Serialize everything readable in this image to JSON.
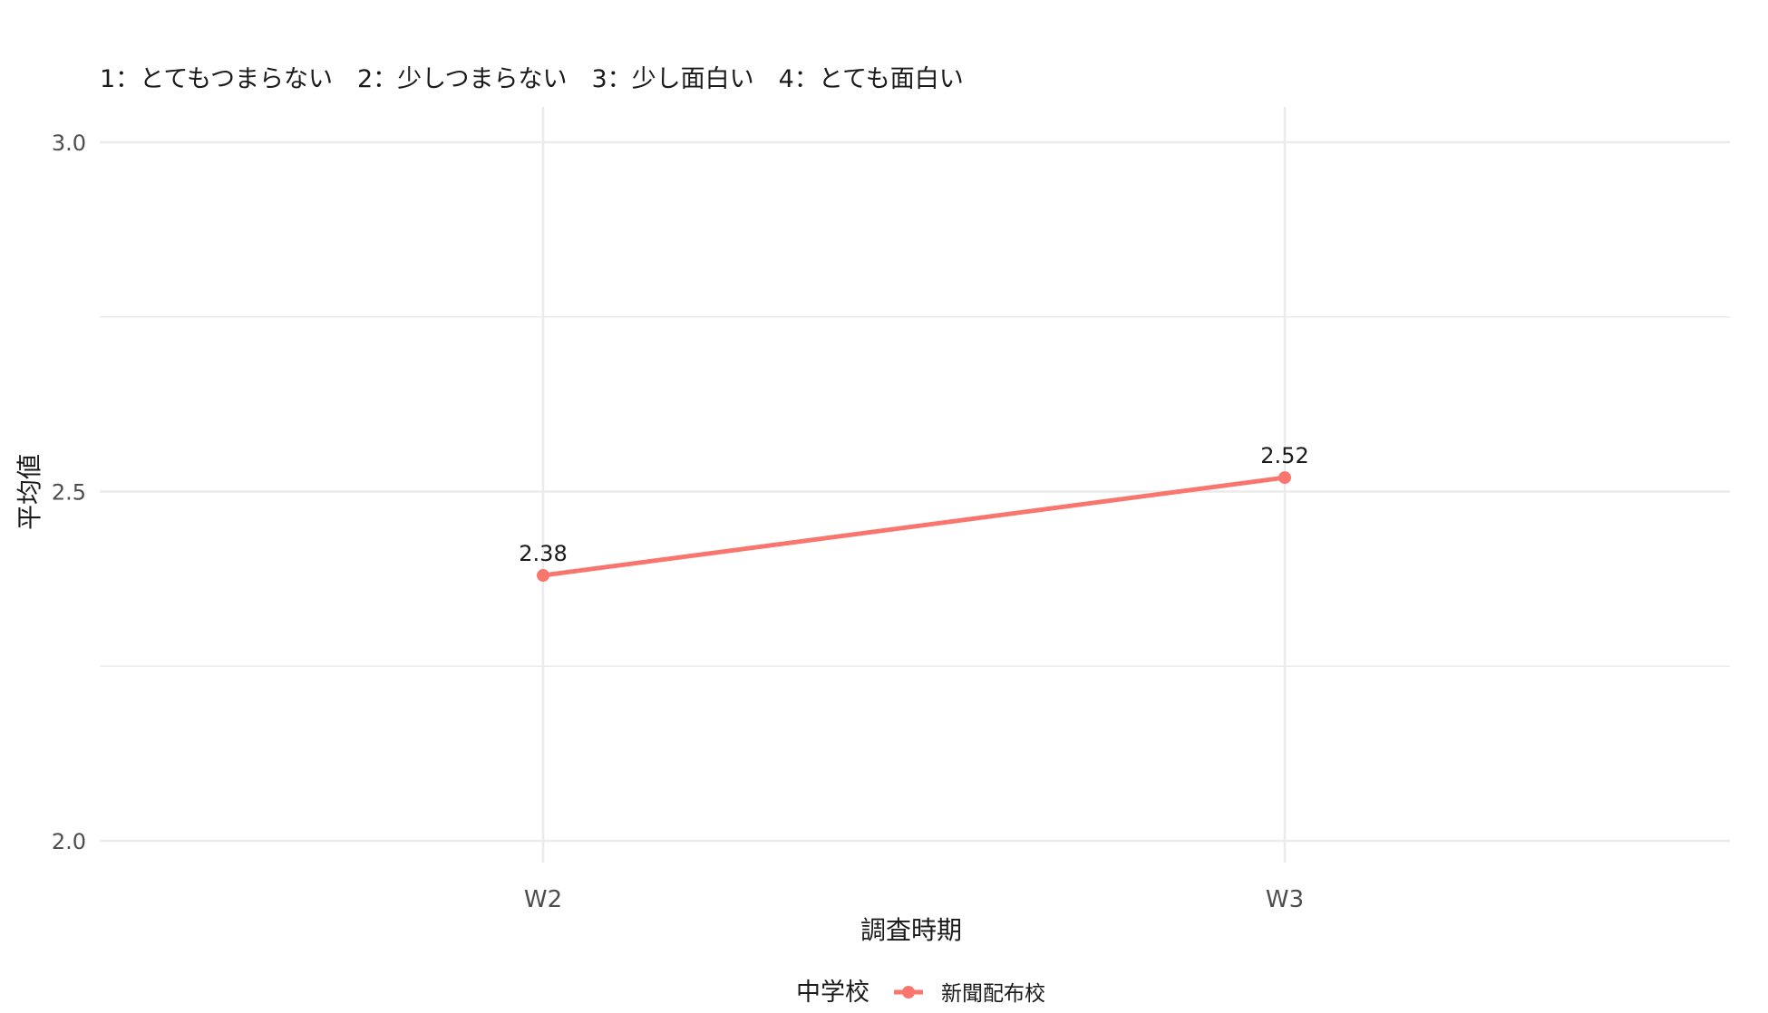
{
  "chart_data": {
    "type": "line",
    "subtitle": "1：とてもつまらない　2：少しつまらない　3：少し面白い　4：とても面白い",
    "xlabel": "調査時期",
    "ylabel": "平均値",
    "categories": [
      "W2",
      "W3"
    ],
    "ylim": [
      1.93,
      3.05
    ],
    "yticks": [
      2.0,
      2.5,
      3.0
    ],
    "ytick_labels": [
      "2.0",
      "2.5",
      "3.0"
    ],
    "grid": true,
    "legend": {
      "title": "中学校",
      "position": "bottom"
    },
    "series": [
      {
        "name": "新聞配布校",
        "color": "#F8766D",
        "values": [
          2.38,
          2.52
        ],
        "labels": [
          "2.38",
          "2.52"
        ]
      }
    ]
  },
  "colors": {
    "grid": "#EBEBEB",
    "tick_text": "#4D4D4D",
    "title_text": "#1A1A1A"
  }
}
